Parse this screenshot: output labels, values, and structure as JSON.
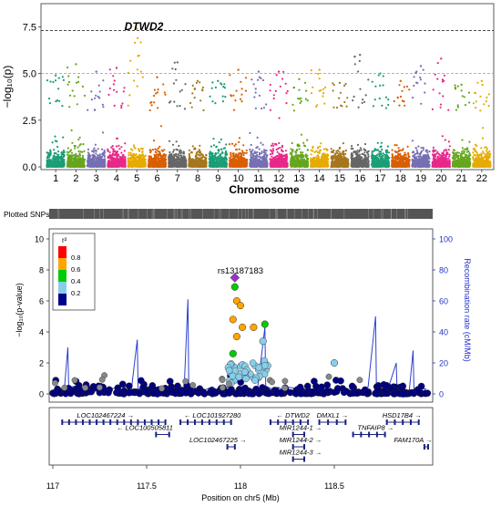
{
  "manhattan": {
    "ylabel": "−log₁₀(p)",
    "xlabel": "Chromosome",
    "yticks": [
      "0.0",
      "2.5",
      "5.0",
      "7.5"
    ],
    "threshold_label": "7.3",
    "gene_label": "DTWD2",
    "chromosomes": [
      "1",
      "2",
      "3",
      "4",
      "5",
      "6",
      "7",
      "8",
      "9",
      "10",
      "11",
      "12",
      "13",
      "14",
      "15",
      "16",
      "17",
      "18",
      "19",
      "20",
      "21",
      "22"
    ],
    "colors": [
      "#1b9e77",
      "#66a61e",
      "#7570b3",
      "#e7298a",
      "#e6ab02",
      "#d95f02",
      "#666666",
      "#a6761d",
      "#1b9e77",
      "#d95f02",
      "#7570b3",
      "#e7298a",
      "#66a61e",
      "#e6ab02",
      "#a6761d",
      "#666666",
      "#1b9e77",
      "#d95f02",
      "#7570b3",
      "#e7298a",
      "#66a61e",
      "#e6ab02"
    ]
  },
  "plotted_snps_label": "Plotted SNPs",
  "regional": {
    "ylabel_left": "−log₁₀(p-value)",
    "ylabel_right": "Recombination rate (cM/Mb)",
    "xlabel": "Position on chr5 (Mb)",
    "yticks_left": [
      "0",
      "2",
      "4",
      "6",
      "8",
      "10"
    ],
    "yticks_right": [
      "0",
      "20",
      "40",
      "60",
      "80",
      "100"
    ],
    "xticks": [
      "117",
      "117.5",
      "118",
      "118.5"
    ],
    "lead_snp": "rs13187183",
    "legend_title": "r²",
    "legend_items": [
      {
        "label": "0.8",
        "color": "#ff0000"
      },
      {
        "label": "0.6",
        "color": "#ffa500"
      },
      {
        "label": "0.4",
        "color": "#00cc00"
      },
      {
        "label": "0.2",
        "color": "#87ceeb"
      },
      {
        "label": "",
        "color": "#00008b"
      }
    ],
    "genes": [
      "LOC102467224",
      "LOC101927280",
      "LOC100505811",
      "LOC102467225",
      "DTWD2",
      "MIR1244-1",
      "MIR1244-2",
      "MIR1244-3",
      "DMXL1",
      "TNFAIP8",
      "HSD17B4",
      "FAM170A"
    ]
  },
  "chart_data": [
    {
      "type": "scatter",
      "title": "",
      "xlabel": "Chromosome",
      "ylabel": "−log10(p)",
      "ylim": [
        0,
        8.5
      ],
      "categories": [
        "1",
        "2",
        "3",
        "4",
        "5",
        "6",
        "7",
        "8",
        "9",
        "10",
        "11",
        "12",
        "13",
        "14",
        "15",
        "16",
        "17",
        "18",
        "19",
        "20",
        "21",
        "22"
      ],
      "peak_max_values": [
        4.9,
        5.5,
        5.1,
        5.3,
        7.4,
        4.8,
        5.6,
        4.6,
        4.6,
        5.2,
        5.1,
        5.1,
        4.7,
        5.2,
        4.5,
        6.0,
        5.0,
        4.6,
        5.4,
        5.8,
        4.4,
        4.6
      ],
      "genome_wide_threshold": 7.3,
      "suggestive_threshold": 5.0,
      "annotation": "DTWD2",
      "grid": false,
      "legend": false
    },
    {
      "type": "scatter",
      "title": "",
      "xlabel": "Position on chr5 (Mb)",
      "ylabel": "−log10(p-value)",
      "y2label": "Recombination rate (cM/Mb)",
      "xlim": [
        117.0,
        119.0
      ],
      "ylim": [
        0,
        10
      ],
      "y2lim": [
        0,
        100
      ],
      "lead_snp": {
        "name": "rs13187183",
        "x": 117.97,
        "y": 7.5
      },
      "top_points": [
        {
          "x": 117.97,
          "y": 6.9,
          "r2": "0.4-0.6"
        },
        {
          "x": 117.98,
          "y": 6.0,
          "r2": "0.6-0.8"
        },
        {
          "x": 118.0,
          "y": 5.7,
          "r2": "0.6-0.8"
        },
        {
          "x": 117.96,
          "y": 4.8,
          "r2": "0.6-0.8"
        },
        {
          "x": 118.01,
          "y": 4.3,
          "r2": "0.6-0.8"
        },
        {
          "x": 118.07,
          "y": 4.3,
          "r2": "0.6-0.8"
        },
        {
          "x": 118.13,
          "y": 4.5,
          "r2": "0.4-0.6"
        },
        {
          "x": 117.98,
          "y": 3.7,
          "r2": "0.6-0.8"
        },
        {
          "x": 117.96,
          "y": 2.6,
          "r2": "0.4-0.6"
        },
        {
          "x": 118.12,
          "y": 3.4,
          "r2": "0.2-0.4"
        },
        {
          "x": 118.5,
          "y": 2.0,
          "r2": "0.2-0.4"
        }
      ],
      "recombination_peaks": [
        {
          "x": 117.08,
          "y": 30
        },
        {
          "x": 117.45,
          "y": 35
        },
        {
          "x": 117.72,
          "y": 61
        },
        {
          "x": 118.13,
          "y": 43
        },
        {
          "x": 118.72,
          "y": 50
        },
        {
          "x": 118.83,
          "y": 20
        },
        {
          "x": 118.92,
          "y": 28
        }
      ],
      "legend": "top-left",
      "legend_title": "r²",
      "legend_labels": [
        "0.8",
        "0.6",
        "0.4",
        "0.2"
      ]
    }
  ]
}
